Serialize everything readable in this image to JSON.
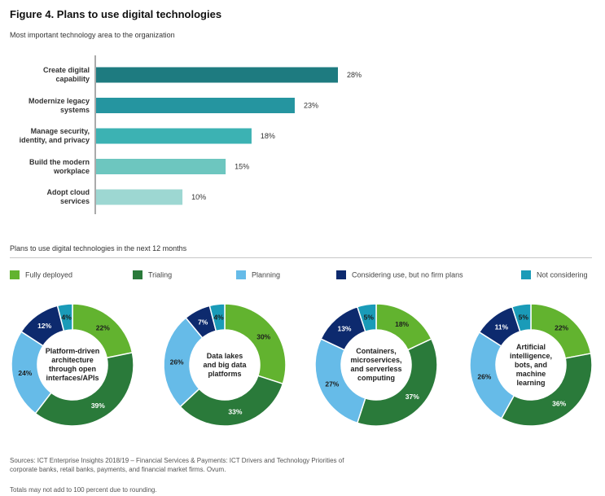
{
  "title": "Figure 4. Plans to use digital technologies",
  "subtitle": "Most important technology area to the organization",
  "section_title": "Plans to use digital technologies in the next 12 months",
  "source": "Sources: ICT Enterprise Insights 2018/19 – Financial Services & Payments: ICT Drivers and Technology Priorities of corporate banks, retail banks, payments, and financial market firms. Ovum.",
  "note": "Totals may not add to 100 percent due to rounding.",
  "legend": [
    {
      "label": "Fully deployed",
      "color": "#62b32f"
    },
    {
      "label": "Trialing",
      "color": "#2a7a3a"
    },
    {
      "label": "Planning",
      "color": "#66bbe8"
    },
    {
      "label": "Considering use, but no firm plans",
      "color": "#0d2a6e"
    },
    {
      "label": "Not considering",
      "color": "#1a9bb8"
    }
  ],
  "chart_data": [
    {
      "type": "bar",
      "orientation": "horizontal",
      "title": "Most important technology area to the organization",
      "categories": [
        "Create digital capability",
        "Modernize legacy systems",
        "Manage security, identity, and privacy",
        "Build the modern workplace",
        "Adopt cloud services"
      ],
      "category_lines": [
        [
          "Create digital",
          "capability"
        ],
        [
          "Modernize legacy",
          "systems"
        ],
        [
          "Manage security,",
          "identity, and privacy"
        ],
        [
          "Build the modern",
          "workplace"
        ],
        [
          "Adopt cloud",
          "services"
        ]
      ],
      "values": [
        28,
        23,
        18,
        15,
        10
      ],
      "value_labels": [
        "28%",
        "23%",
        "18%",
        "15%",
        "10%"
      ],
      "colors": [
        "#1e7b80",
        "#2595a0",
        "#3cb2b3",
        "#6dc6bf",
        "#9dd7d2"
      ],
      "xlim": [
        0,
        30
      ]
    },
    {
      "type": "pie",
      "subtype": "donut",
      "title": "Platform-driven architecture through open interfaces/APIs",
      "center_lines": [
        "Platform-driven",
        "architecture",
        "through open",
        "interfaces/APIs"
      ],
      "labels": [
        "Fully deployed",
        "Trialing",
        "Planning",
        "Considering use, but no firm plans",
        "Not considering"
      ],
      "values": [
        22,
        39,
        24,
        12,
        4
      ]
    },
    {
      "type": "pie",
      "subtype": "donut",
      "title": "Data lakes and big data platforms",
      "center_lines": [
        "Data lakes",
        "and big data",
        "platforms"
      ],
      "labels": [
        "Fully deployed",
        "Trialing",
        "Planning",
        "Considering use, but no firm plans",
        "Not considering"
      ],
      "values": [
        30,
        33,
        26,
        7,
        4
      ]
    },
    {
      "type": "pie",
      "subtype": "donut",
      "title": "Containers, microservices, and serverless computing",
      "center_lines": [
        "Containers,",
        "microservices,",
        "and serverless",
        "computing"
      ],
      "labels": [
        "Fully deployed",
        "Trialing",
        "Planning",
        "Considering use, but no firm plans",
        "Not considering"
      ],
      "values": [
        18,
        37,
        27,
        13,
        5
      ]
    },
    {
      "type": "pie",
      "subtype": "donut",
      "title": "Artificial intelligence, bots, and machine learning",
      "center_lines": [
        "Artificial",
        "intelligence,",
        "bots, and",
        "machine",
        "learning"
      ],
      "labels": [
        "Fully deployed",
        "Trialing",
        "Planning",
        "Considering use, but no firm plans",
        "Not considering"
      ],
      "values": [
        22,
        36,
        26,
        11,
        5
      ]
    }
  ]
}
